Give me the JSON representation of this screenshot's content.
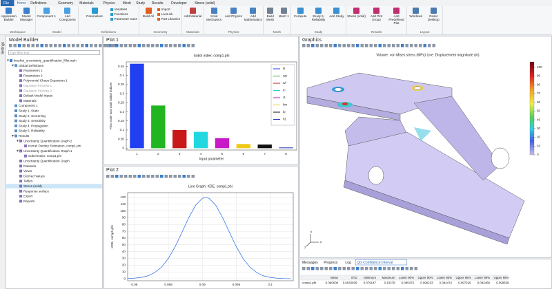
{
  "ribbon": {
    "tabs": [
      "File",
      "Home",
      "Definitions",
      "Geometry",
      "Materials",
      "Physics",
      "Mesh",
      "Study",
      "Results",
      "Developer",
      "Stress (solid)"
    ],
    "groups": [
      {
        "label": "Workspace",
        "buttons": [
          "Application Builder",
          "Model Manager"
        ]
      },
      {
        "label": "Model",
        "buttons": [
          "Component 1",
          "Add Component"
        ]
      },
      {
        "label": "Definitions",
        "buttons": [
          "Parameters",
          "Variables",
          "Functions",
          "Parameter Case"
        ]
      },
      {
        "label": "Geometry",
        "buttons": [
          "Build All",
          "Import",
          "LiveLink",
          "Part Libraries"
        ]
      },
      {
        "label": "Materials",
        "buttons": [
          "Add Material"
        ]
      },
      {
        "label": "Physics",
        "buttons": [
          "Solid Mechanics",
          "Add Physics",
          "Add Mathematics"
        ]
      },
      {
        "label": "Mesh",
        "buttons": [
          "Build Mesh",
          "Mesh 1"
        ]
      },
      {
        "label": "Study",
        "buttons": [
          "Compute",
          "Study 5, Reliability",
          "Add Study"
        ]
      },
      {
        "label": "Results",
        "buttons": [
          "Stress (solid)",
          "Add Plot Group",
          "Add Predefined Plot"
        ]
      },
      {
        "label": "Layout",
        "buttons": [
          "Windows",
          "Reset Desktop"
        ]
      }
    ]
  },
  "settings_tab": "Settings",
  "model_builder": {
    "title": "Model Builder",
    "filter_placeholder": "Type filter text",
    "tree": {
      "label": "bracket_uncertainty_quantification_fillet.mph",
      "children": [
        {
          "label": "Global Definitions",
          "children": [
            {
              "label": "Parameters 1"
            },
            {
              "label": "Parameters 2"
            },
            {
              "label": "Polynomial Chaos Expansion 1"
            },
            {
              "label": "Gaussian Process 1",
              "state": "disabled"
            },
            {
              "label": "Gaussian Process 2",
              "state": "disabled"
            },
            {
              "label": "Default Model Inputs"
            },
            {
              "label": "Materials"
            }
          ]
        },
        {
          "label": "Component 1"
        },
        {
          "label": "Study 1, Static"
        },
        {
          "label": "Study 2, Screening"
        },
        {
          "label": "Study 3, Sensitivity"
        },
        {
          "label": "Study 4, Propagation"
        },
        {
          "label": "Study 5, Reliability"
        },
        {
          "label": "Results",
          "children": [
            {
              "label": "Uncertainty Quantification Graph 2",
              "children": [
                {
                  "label": "Kernel Density Estimation, comp1.phi"
                }
              ]
            },
            {
              "label": "Uncertainty Quantification Graph 1",
              "children": [
                {
                  "label": "Sobol Index, comp1.phi"
                }
              ]
            },
            {
              "label": "Uncertainty Quantification Graph"
            },
            {
              "label": "Datasets"
            },
            {
              "label": "Views"
            },
            {
              "label": "Derived Values"
            },
            {
              "label": "Tables"
            },
            {
              "label": "Stress (solid)",
              "state": "selected"
            },
            {
              "label": "Response surface"
            },
            {
              "label": "Export"
            },
            {
              "label": "Reports"
            }
          ]
        }
      ]
    }
  },
  "panels": {
    "plot1": "Plot 1",
    "plot2": "Plot 2",
    "graphics": "Graphics"
  },
  "graphics": {
    "annotation": "Volume: von Mises stress (MPa)  Line: Displacement magnitude (m)",
    "clim": [
      0,
      106
    ],
    "cticks": [
      0,
      10,
      20,
      30,
      40,
      50,
      60,
      70,
      80,
      90,
      100
    ],
    "triad": [
      "x",
      "y",
      "z"
    ]
  },
  "messages": {
    "tabs": [
      "Messages",
      "Progress",
      "Log",
      "Qoi Confidence Interval"
    ],
    "table": {
      "columns": [
        "Mean",
        "STD",
        "Minimum",
        "Maximum",
        "Lower 90%",
        "Upper 90%",
        "Lower 95%",
        "Upper 95%",
        "Lower 99%",
        "Upper 99%"
      ],
      "rows": [
        {
          "label": "comp1.phi",
          "cells": [
            "0.090608",
            "0.0032839",
            "0.079147",
            "0.10378",
            "0.085473",
            "0.096233",
            "0.084474",
            "0.097226",
            "0.082468",
            "0.099568"
          ]
        }
      ]
    }
  },
  "chart_data": [
    {
      "type": "bar",
      "title": "Sobol index: comp1.phi",
      "xlabel": "Input parameter",
      "ylabel": "First order and total Sobol indices",
      "categories": [
        "1",
        "2",
        "3",
        "4",
        "5",
        "6",
        "7",
        "8"
      ],
      "series": [
        {
          "name": "ls",
          "color": "#1f3ff0",
          "values": [
            0.465,
            null,
            null,
            null,
            null,
            null,
            null,
            null
          ]
        },
        {
          "name": "wp",
          "color": "#22b522",
          "values": [
            null,
            0.235,
            null,
            null,
            null,
            null,
            null,
            null
          ]
        },
        {
          "name": "wf",
          "color": "#c81818",
          "values": [
            null,
            null,
            0.1,
            null,
            null,
            null,
            null,
            null
          ]
        },
        {
          "name": "tc",
          "color": "#22d8e0",
          "values": [
            null,
            null,
            null,
            0.09,
            null,
            null,
            null,
            null
          ]
        },
        {
          "name": "r1",
          "color": "#c818c8",
          "values": [
            null,
            null,
            null,
            null,
            0.055,
            null,
            null,
            null
          ]
        },
        {
          "name": "hm",
          "color": "#f0c818",
          "values": [
            null,
            null,
            null,
            null,
            null,
            0.023,
            null,
            null
          ]
        },
        {
          "name": "lp",
          "color": "#111111",
          "values": [
            null,
            null,
            null,
            null,
            null,
            null,
            0.02,
            null
          ]
        },
        {
          "name": "h1",
          "color": "#2838c8",
          "values": [
            null,
            null,
            null,
            null,
            null,
            null,
            null,
            0.004
          ]
        }
      ],
      "ylim": [
        -0.01,
        0.475
      ],
      "yticks": [
        0,
        0.05,
        0.1,
        0.15,
        0.2,
        0.25,
        0.3,
        0.35,
        0.4,
        0.45
      ],
      "legend": "upper right"
    },
    {
      "type": "line",
      "title": "Line Graph: KDE, comp1.phi",
      "ylabel": "KDE, comp1.phi",
      "color": "#3c78e6",
      "x": [
        0.079,
        0.08,
        0.081,
        0.082,
        0.083,
        0.084,
        0.085,
        0.086,
        0.087,
        0.088,
        0.089,
        0.09,
        0.0905,
        0.091,
        0.092,
        0.093,
        0.094,
        0.095,
        0.096,
        0.097,
        0.098,
        0.099,
        0.1,
        0.101,
        0.102,
        0.103
      ],
      "values": [
        0.3,
        0.8,
        1.9,
        4.3,
        9.1,
        17.2,
        29.9,
        47.4,
        68.4,
        90,
        108.2,
        118.6,
        120,
        118.6,
        108.2,
        90,
        68.4,
        47.4,
        29.9,
        17.2,
        9.1,
        4.3,
        1.9,
        0.8,
        0.3,
        0.1
      ],
      "xlim": [
        0.079,
        0.1034
      ],
      "xticks": [
        0.08,
        0.085,
        0.09,
        0.095,
        0.1
      ],
      "ylim": [
        -3,
        127
      ],
      "yticks": [
        0,
        10,
        20,
        30,
        40,
        50,
        60,
        70,
        80,
        90,
        100,
        110,
        120
      ],
      "grid": true
    }
  ]
}
